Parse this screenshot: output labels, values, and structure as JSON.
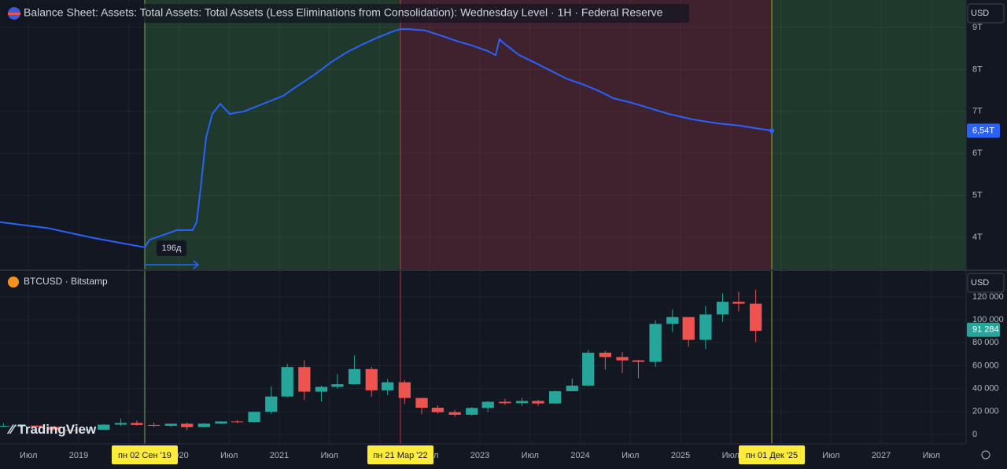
{
  "chart_data": [
    {
      "type": "line",
      "title": "Balance Sheet: Assets: Total Assets: Total Assets (Less Eliminations from Consolidation): Wednesday Level · 1H · Federal Reserve",
      "currency": "USD",
      "color": "#2962ff",
      "xlim": [
        2018.216,
        2027.847
      ],
      "ylim": [
        3.232,
        9.655
      ],
      "yticks": [
        {
          "value": 4,
          "label": "4T"
        },
        {
          "value": 5,
          "label": "5T"
        },
        {
          "value": 6,
          "label": "6T"
        },
        {
          "value": 7,
          "label": "7T"
        },
        {
          "value": 8,
          "label": "8T"
        },
        {
          "value": 9,
          "label": "9T"
        }
      ],
      "last": {
        "value": 6.54,
        "label": "6,54T"
      },
      "annotation": "196д",
      "markers": [
        {
          "value": 2019.659,
          "label": "пн 02 Сен '19",
          "color": "#9ccc65"
        },
        {
          "value": 2022.208,
          "label": "пн 21 Мар '22",
          "color": "#f23645"
        },
        {
          "value": 2025.91,
          "label": "пн 01 Дек '25",
          "color": "#c0ca33"
        }
      ],
      "region_colors": [
        "#1f3a2d",
        "#40212e",
        "#1f3a2d"
      ],
      "x": [
        2018.216,
        2018.686,
        2019.157,
        2019.659,
        2019.706,
        2019.863,
        2019.98,
        2020.137,
        2020.176,
        2020.216,
        2020.271,
        2020.333,
        2020.412,
        2020.506,
        2020.647,
        2020.882,
        2021.039,
        2021.196,
        2021.353,
        2021.51,
        2021.667,
        2021.824,
        2021.98,
        2022.137,
        2022.208,
        2022.294,
        2022.451,
        2022.608,
        2022.765,
        2022.922,
        2023.078,
        2023.157,
        2023.196,
        2023.235,
        2023.392,
        2023.549,
        2023.706,
        2023.863,
        2024.02,
        2024.176,
        2024.333,
        2024.49,
        2024.647,
        2024.882,
        2025.118,
        2025.353,
        2025.588,
        2025.745,
        2025.91
      ],
      "values": [
        4.36,
        4.22,
        3.98,
        3.76,
        3.94,
        4.07,
        4.17,
        4.17,
        4.36,
        5.16,
        6.38,
        6.94,
        7.18,
        6.94,
        7.0,
        7.22,
        7.37,
        7.63,
        7.88,
        8.16,
        8.4,
        8.59,
        8.76,
        8.91,
        8.96,
        8.96,
        8.93,
        8.81,
        8.68,
        8.57,
        8.44,
        8.34,
        8.72,
        8.63,
        8.34,
        8.16,
        7.97,
        7.78,
        7.65,
        7.5,
        7.31,
        7.22,
        7.11,
        6.94,
        6.81,
        6.72,
        6.66,
        6.6,
        6.54
      ]
    },
    {
      "type": "candlestick",
      "title": "BTCUSD · Bitstamp",
      "currency": "USD",
      "up_color": "#26a69a",
      "down_color": "#ef5350",
      "logo": "TradingView",
      "xlim": [
        2018.216,
        2027.847
      ],
      "ylim": [
        -8200,
        142500
      ],
      "yticks": [
        0,
        {
          "value": 20000,
          "label": "20 000"
        },
        {
          "value": 40000,
          "label": "40 000"
        },
        {
          "value": 60000,
          "label": "60 000"
        },
        {
          "value": 80000,
          "label": "80 000"
        },
        {
          "value": 100000,
          "label": "100 000"
        },
        {
          "value": 120000,
          "label": "120 000"
        }
      ],
      "xticks": [
        {
          "value": 2018.5,
          "label": "Июл"
        },
        2019,
        {
          "value": 2019.5,
          "label": "Июл"
        },
        2020,
        {
          "value": 2020.5,
          "label": "Июл"
        },
        2021,
        {
          "value": 2021.5,
          "label": "Июл"
        },
        2022,
        {
          "value": 2022.5,
          "label": "Июл"
        },
        2023,
        {
          "value": 2023.5,
          "label": "Июл"
        },
        2024,
        {
          "value": 2024.5,
          "label": "Июл"
        },
        2025,
        {
          "value": 2025.5,
          "label": "Июл"
        },
        2026,
        {
          "value": 2026.5,
          "label": "Июл"
        },
        2027,
        {
          "value": 2027.5,
          "label": "Июл"
        }
      ],
      "last": {
        "value": 91284,
        "label": "91 284"
      },
      "x": [
        2018.25,
        2018.42,
        2018.58,
        2018.75,
        2018.92,
        2019.08,
        2019.25,
        2019.42,
        2019.58,
        2019.75,
        2019.92,
        2020.08,
        2020.25,
        2020.42,
        2020.58,
        2020.75,
        2020.92,
        2021.08,
        2021.25,
        2021.42,
        2021.58,
        2021.75,
        2021.92,
        2022.08,
        2022.25,
        2022.42,
        2022.58,
        2022.75,
        2022.92,
        2023.08,
        2023.25,
        2023.42,
        2023.58,
        2023.75,
        2023.92,
        2024.08,
        2024.25,
        2024.42,
        2024.58,
        2024.75,
        2024.92,
        2025.08,
        2025.25,
        2025.42,
        2025.58,
        2025.75
      ],
      "open": [
        6900,
        7500,
        7700,
        6600,
        4000,
        3450,
        4100,
        8550,
        10000,
        8300,
        7550,
        9350,
        6400,
        9450,
        11350,
        10780,
        19700,
        33100,
        58800,
        37300,
        41500,
        43800,
        57000,
        38500,
        45500,
        31800,
        23300,
        19400,
        17200,
        23100,
        28500,
        27200,
        29200,
        27000,
        37700,
        42600,
        71300,
        67500,
        64600,
        63300,
        96400,
        102400,
        82500,
        104600,
        115700,
        114000
      ],
      "high": [
        9900,
        8500,
        7800,
        7400,
        4300,
        4100,
        9000,
        13800,
        12300,
        10500,
        9500,
        10500,
        10000,
        11400,
        12500,
        19800,
        41900,
        61700,
        64800,
        42500,
        52900,
        69000,
        59000,
        48200,
        47400,
        31900,
        25200,
        21400,
        23900,
        29200,
        31000,
        31800,
        30200,
        38400,
        48900,
        73800,
        72800,
        71900,
        65100,
        99600,
        109000,
        102500,
        112000,
        123200,
        124500,
        126200
      ],
      "low": [
        6500,
        5800,
        5900,
        3700,
        3200,
        3400,
        4100,
        7500,
        7800,
        6500,
        6500,
        3850,
        6200,
        8900,
        9900,
        10400,
        18100,
        32300,
        30000,
        28800,
        40000,
        43300,
        33000,
        34300,
        26700,
        17600,
        18200,
        15500,
        16300,
        19600,
        25800,
        24800,
        25000,
        26900,
        37600,
        41900,
        56500,
        53500,
        49000,
        58900,
        89200,
        76600,
        74500,
        98200,
        107300,
        80500
      ],
      "close": [
        7500,
        7700,
        6600,
        4000,
        3450,
        4100,
        8550,
        10000,
        8300,
        7550,
        9350,
        6400,
        9450,
        11350,
        10780,
        19700,
        33100,
        58800,
        37300,
        41500,
        43800,
        57000,
        38500,
        45500,
        31800,
        23300,
        19400,
        17200,
        23100,
        28500,
        27200,
        29200,
        27000,
        37700,
        42600,
        71300,
        67500,
        64600,
        63300,
        96400,
        102400,
        82500,
        104600,
        115700,
        114000,
        90400
      ]
    }
  ]
}
